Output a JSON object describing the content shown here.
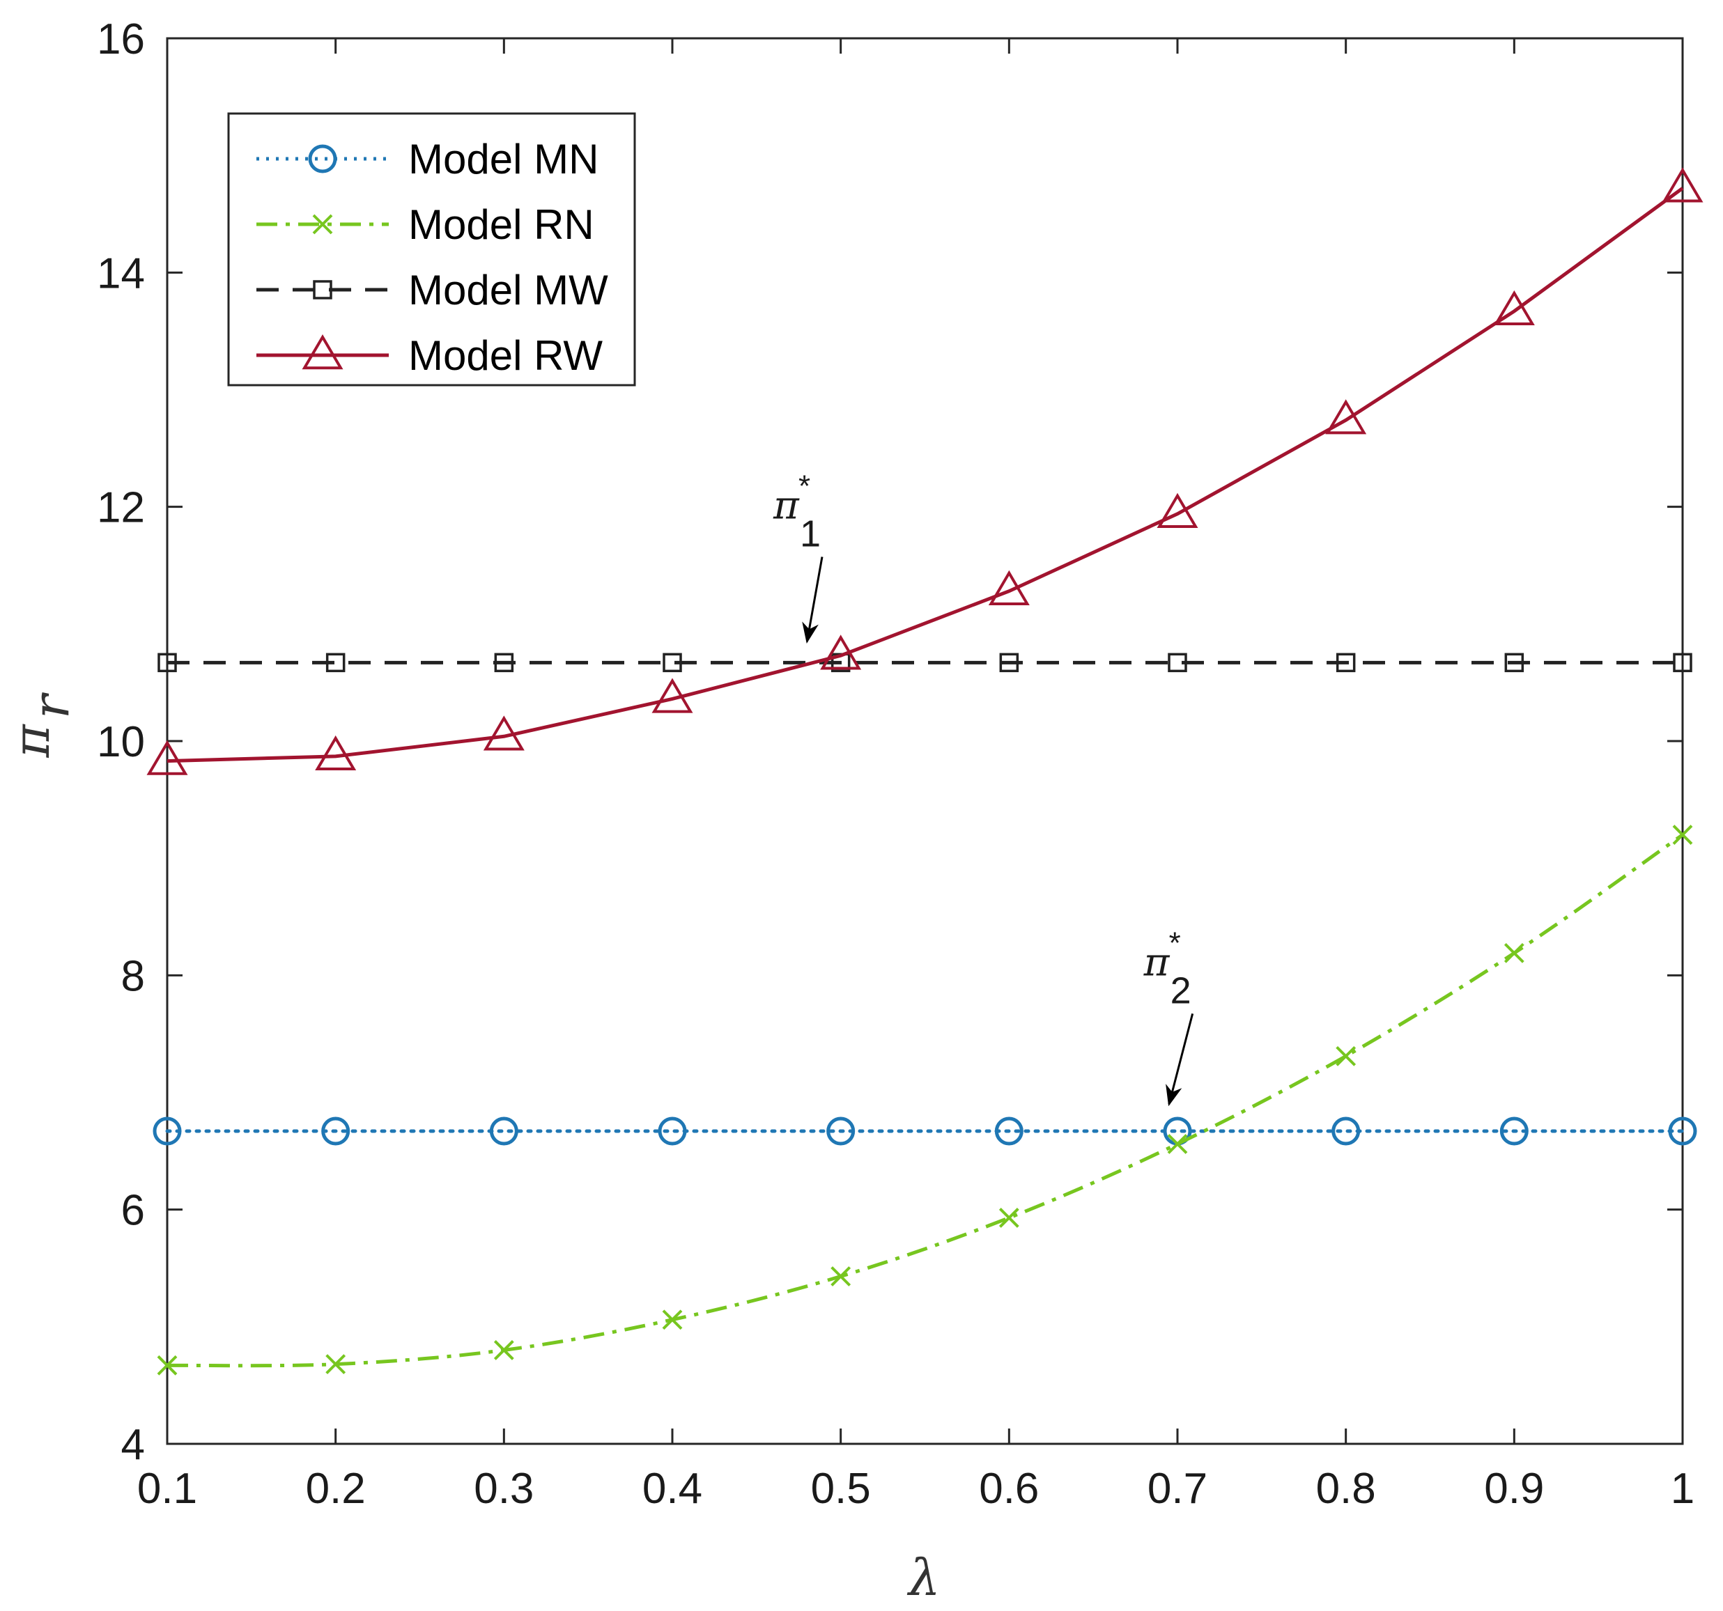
{
  "chart_data": {
    "type": "line",
    "title": "",
    "xlabel": "λ",
    "ylabel": "π",
    "ylabel_sub": "r",
    "xlim": [
      0.1,
      1
    ],
    "ylim": [
      4,
      16
    ],
    "x": [
      0.1,
      0.2,
      0.3,
      0.4,
      0.5,
      0.6,
      0.7,
      0.8,
      0.9,
      1
    ],
    "xticks": [
      "0.1",
      "0.2",
      "0.3",
      "0.4",
      "0.5",
      "0.6",
      "0.7",
      "0.8",
      "0.9",
      "1"
    ],
    "yticks": [
      "4",
      "6",
      "8",
      "10",
      "12",
      "14",
      "16"
    ],
    "ytick_values": [
      4,
      6,
      8,
      10,
      12,
      14,
      16
    ],
    "grid": false,
    "legend_position": "top-left",
    "series": [
      {
        "name": "Model MN",
        "color": "#1f77b4",
        "line": "dotted",
        "marker": "circle",
        "values": [
          6.67,
          6.67,
          6.67,
          6.67,
          6.67,
          6.67,
          6.67,
          6.67,
          6.67,
          6.67
        ]
      },
      {
        "name": "Model RN",
        "color": "#77c61f",
        "line": "dashdot",
        "marker": "x",
        "values": [
          4.67,
          4.68,
          4.8,
          5.06,
          5.43,
          5.93,
          6.56,
          7.31,
          8.19,
          9.2
        ]
      },
      {
        "name": "Model MW",
        "color": "#222222",
        "line": "dashed",
        "marker": "square",
        "values": [
          10.67,
          10.67,
          10.67,
          10.67,
          10.67,
          10.67,
          10.67,
          10.67,
          10.67,
          10.67
        ]
      },
      {
        "name": "Model RW",
        "color": "#a2142f",
        "line": "solid",
        "marker": "triangle",
        "values": [
          9.83,
          9.87,
          10.04,
          10.36,
          10.73,
          11.28,
          11.94,
          12.74,
          13.67,
          14.72
        ]
      }
    ],
    "annotations": [
      {
        "symbol": "π",
        "subscript": "1",
        "superscript": "*",
        "x": 0.46,
        "y": 11.9,
        "arrow_to": {
          "x": 0.48,
          "y": 10.85
        }
      },
      {
        "symbol": "π",
        "subscript": "2",
        "superscript": "*",
        "x": 0.68,
        "y": 8.0,
        "arrow_to": {
          "x": 0.695,
          "y": 6.9
        }
      }
    ]
  }
}
